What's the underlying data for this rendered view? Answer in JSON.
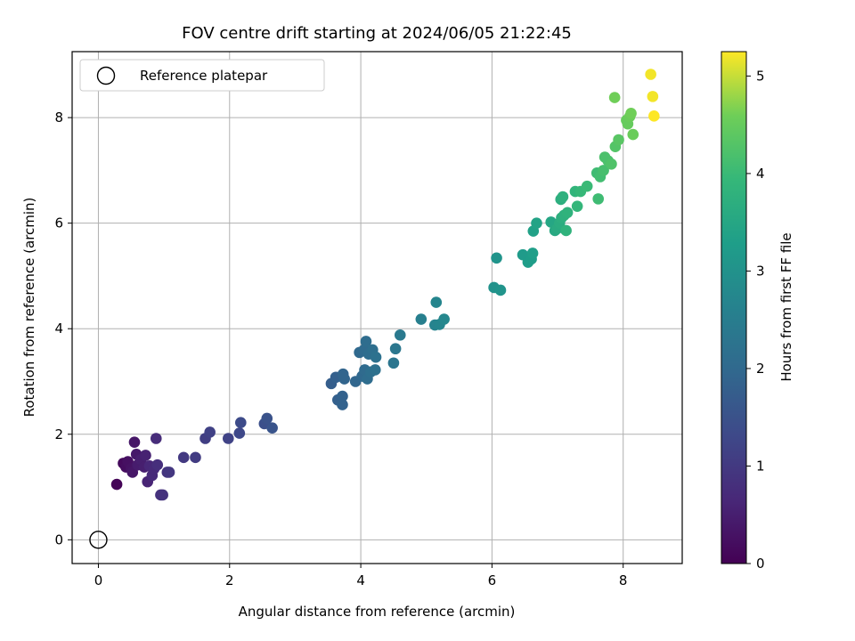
{
  "chart_data": {
    "type": "scatter",
    "title": "FOV centre drift starting at 2024/06/05 21:22:45",
    "xlabel": "Angular distance from reference (arcmin)",
    "ylabel": "Rotation from reference (arcmin)",
    "xlim": [
      -0.4,
      8.9
    ],
    "ylim": [
      -0.45,
      9.25
    ],
    "xticks": [
      0,
      2,
      4,
      6,
      8
    ],
    "yticks": [
      0,
      2,
      4,
      6,
      8
    ],
    "grid": true,
    "legend": {
      "placement": "top-left",
      "entries": [
        "Reference platepar"
      ]
    },
    "reference_point": {
      "x": 0,
      "y": 0,
      "label": "Reference platepar"
    },
    "colorbar": {
      "label": "Hours from first FF file",
      "range": [
        0,
        5.25
      ],
      "ticks": [
        0,
        1,
        2,
        3,
        4,
        5
      ],
      "colormap": "viridis"
    },
    "series": [
      {
        "points": [
          {
            "x": 0.28,
            "y": 1.05,
            "c": 0.05
          },
          {
            "x": 0.38,
            "y": 1.45,
            "c": 0.15
          },
          {
            "x": 0.42,
            "y": 1.38,
            "c": 0.2
          },
          {
            "x": 0.45,
            "y": 1.48,
            "c": 0.25
          },
          {
            "x": 0.5,
            "y": 1.35,
            "c": 0.3
          },
          {
            "x": 0.52,
            "y": 1.28,
            "c": 0.35
          },
          {
            "x": 0.55,
            "y": 1.85,
            "c": 0.35
          },
          {
            "x": 0.58,
            "y": 1.62,
            "c": 0.4
          },
          {
            "x": 0.6,
            "y": 1.42,
            "c": 0.45
          },
          {
            "x": 0.65,
            "y": 1.52,
            "c": 0.5
          },
          {
            "x": 0.7,
            "y": 1.38,
            "c": 0.5
          },
          {
            "x": 0.72,
            "y": 1.6,
            "c": 0.55
          },
          {
            "x": 0.75,
            "y": 1.1,
            "c": 0.6
          },
          {
            "x": 0.78,
            "y": 1.4,
            "c": 0.65
          },
          {
            "x": 0.82,
            "y": 1.22,
            "c": 0.7
          },
          {
            "x": 0.85,
            "y": 1.35,
            "c": 0.7
          },
          {
            "x": 0.88,
            "y": 1.92,
            "c": 0.75
          },
          {
            "x": 0.9,
            "y": 1.42,
            "c": 0.8
          },
          {
            "x": 0.95,
            "y": 0.85,
            "c": 0.85
          },
          {
            "x": 0.98,
            "y": 0.85,
            "c": 0.85
          },
          {
            "x": 1.05,
            "y": 1.28,
            "c": 0.9
          },
          {
            "x": 1.08,
            "y": 1.28,
            "c": 0.95
          },
          {
            "x": 1.3,
            "y": 1.56,
            "c": 1.0
          },
          {
            "x": 1.48,
            "y": 1.56,
            "c": 1.05
          },
          {
            "x": 1.63,
            "y": 1.92,
            "c": 1.1
          },
          {
            "x": 1.7,
            "y": 2.04,
            "c": 1.15
          },
          {
            "x": 1.98,
            "y": 1.92,
            "c": 1.2
          },
          {
            "x": 2.15,
            "y": 2.02,
            "c": 1.3
          },
          {
            "x": 2.17,
            "y": 2.22,
            "c": 1.35
          },
          {
            "x": 2.53,
            "y": 2.2,
            "c": 1.45
          },
          {
            "x": 2.57,
            "y": 2.3,
            "c": 1.5
          },
          {
            "x": 2.65,
            "y": 2.12,
            "c": 1.55
          },
          {
            "x": 3.55,
            "y": 2.96,
            "c": 1.75
          },
          {
            "x": 3.62,
            "y": 3.08,
            "c": 1.8
          },
          {
            "x": 3.65,
            "y": 2.65,
            "c": 1.8
          },
          {
            "x": 3.72,
            "y": 2.56,
            "c": 1.85
          },
          {
            "x": 3.72,
            "y": 2.72,
            "c": 1.85
          },
          {
            "x": 3.73,
            "y": 3.14,
            "c": 1.9
          },
          {
            "x": 3.75,
            "y": 3.05,
            "c": 1.9
          },
          {
            "x": 3.92,
            "y": 3.0,
            "c": 1.95
          },
          {
            "x": 3.98,
            "y": 3.55,
            "c": 2.0
          },
          {
            "x": 4.02,
            "y": 3.1,
            "c": 2.0
          },
          {
            "x": 4.05,
            "y": 3.6,
            "c": 2.05
          },
          {
            "x": 4.06,
            "y": 3.22,
            "c": 2.05
          },
          {
            "x": 4.08,
            "y": 3.76,
            "c": 2.1
          },
          {
            "x": 4.1,
            "y": 3.05,
            "c": 2.1
          },
          {
            "x": 4.12,
            "y": 3.52,
            "c": 2.1
          },
          {
            "x": 4.15,
            "y": 3.18,
            "c": 2.15
          },
          {
            "x": 4.18,
            "y": 3.6,
            "c": 2.15
          },
          {
            "x": 4.22,
            "y": 3.22,
            "c": 2.2
          },
          {
            "x": 4.23,
            "y": 3.46,
            "c": 2.2
          },
          {
            "x": 4.5,
            "y": 3.35,
            "c": 2.3
          },
          {
            "x": 4.53,
            "y": 3.62,
            "c": 2.35
          },
          {
            "x": 4.6,
            "y": 3.88,
            "c": 2.4
          },
          {
            "x": 4.92,
            "y": 4.18,
            "c": 2.55
          },
          {
            "x": 5.13,
            "y": 4.07,
            "c": 2.65
          },
          {
            "x": 5.15,
            "y": 4.5,
            "c": 2.7
          },
          {
            "x": 5.2,
            "y": 4.08,
            "c": 2.7
          },
          {
            "x": 5.27,
            "y": 4.18,
            "c": 2.75
          },
          {
            "x": 6.03,
            "y": 4.78,
            "c": 3.0
          },
          {
            "x": 6.07,
            "y": 5.34,
            "c": 3.05
          },
          {
            "x": 6.13,
            "y": 4.73,
            "c": 3.05
          },
          {
            "x": 6.47,
            "y": 5.4,
            "c": 3.2
          },
          {
            "x": 6.55,
            "y": 5.26,
            "c": 3.25
          },
          {
            "x": 6.6,
            "y": 5.32,
            "c": 3.25
          },
          {
            "x": 6.62,
            "y": 5.43,
            "c": 3.3
          },
          {
            "x": 6.63,
            "y": 5.85,
            "c": 3.35
          },
          {
            "x": 6.68,
            "y": 6.0,
            "c": 3.4
          },
          {
            "x": 6.9,
            "y": 6.02,
            "c": 3.5
          },
          {
            "x": 6.96,
            "y": 5.86,
            "c": 3.55
          },
          {
            "x": 7.0,
            "y": 5.9,
            "c": 3.6
          },
          {
            "x": 7.03,
            "y": 6.0,
            "c": 3.65
          },
          {
            "x": 7.05,
            "y": 6.45,
            "c": 3.7
          },
          {
            "x": 7.06,
            "y": 6.1,
            "c": 3.7
          },
          {
            "x": 7.08,
            "y": 6.5,
            "c": 3.75
          },
          {
            "x": 7.1,
            "y": 6.15,
            "c": 3.75
          },
          {
            "x": 7.13,
            "y": 5.86,
            "c": 3.8
          },
          {
            "x": 7.15,
            "y": 6.2,
            "c": 3.8
          },
          {
            "x": 7.27,
            "y": 6.6,
            "c": 3.85
          },
          {
            "x": 7.3,
            "y": 6.32,
            "c": 3.9
          },
          {
            "x": 7.35,
            "y": 6.6,
            "c": 3.95
          },
          {
            "x": 7.45,
            "y": 6.7,
            "c": 4.0
          },
          {
            "x": 7.6,
            "y": 6.95,
            "c": 4.05
          },
          {
            "x": 7.62,
            "y": 6.46,
            "c": 4.05
          },
          {
            "x": 7.65,
            "y": 6.88,
            "c": 4.1
          },
          {
            "x": 7.7,
            "y": 7.0,
            "c": 4.15
          },
          {
            "x": 7.72,
            "y": 7.25,
            "c": 4.2
          },
          {
            "x": 7.77,
            "y": 7.18,
            "c": 4.2
          },
          {
            "x": 7.82,
            "y": 7.12,
            "c": 4.25
          },
          {
            "x": 7.87,
            "y": 8.38,
            "c": 4.6
          },
          {
            "x": 7.88,
            "y": 7.45,
            "c": 4.3
          },
          {
            "x": 7.93,
            "y": 7.58,
            "c": 4.35
          },
          {
            "x": 8.05,
            "y": 7.95,
            "c": 4.5
          },
          {
            "x": 8.07,
            "y": 7.88,
            "c": 4.5
          },
          {
            "x": 8.1,
            "y": 8.02,
            "c": 4.55
          },
          {
            "x": 8.12,
            "y": 8.08,
            "c": 4.6
          },
          {
            "x": 8.15,
            "y": 7.68,
            "c": 4.55
          },
          {
            "x": 8.42,
            "y": 8.82,
            "c": 5.2
          },
          {
            "x": 8.45,
            "y": 8.4,
            "c": 5.2
          },
          {
            "x": 8.47,
            "y": 8.03,
            "c": 5.25
          }
        ]
      }
    ]
  }
}
